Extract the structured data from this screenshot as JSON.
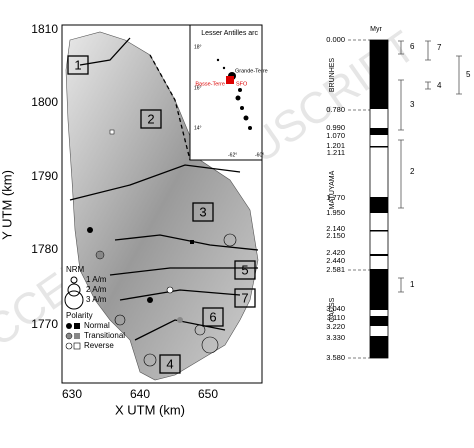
{
  "watermark": "ACCEPTED MANUSCRIPT",
  "map": {
    "x_axis_label": "X UTM (km)",
    "y_axis_label": "Y UTM (km)",
    "xticks": [
      "630",
      "640",
      "650"
    ],
    "yticks": [
      "1810",
      "1800",
      "1790",
      "1780",
      "1770"
    ],
    "zones": [
      "1",
      "2",
      "3",
      "4",
      "5",
      "6",
      "7"
    ],
    "inset": {
      "title": "Lesser Antilles arc",
      "labels": [
        "Grande-Terre",
        "Basse-Terre",
        "SFO"
      ],
      "lat_labels": [
        "18°",
        "16°",
        "14°"
      ],
      "lon_labels": [
        "-62°",
        "-60°"
      ]
    },
    "legend": {
      "nrm_title": "NRM",
      "nrm_items": [
        "1 A/m",
        "2 A/m",
        "3 A/m"
      ],
      "polarity_title": "Polarity",
      "polarity_items": [
        "Normal",
        "Transitional",
        "Reverse"
      ]
    }
  },
  "timescale": {
    "unit": "Myr",
    "ages": [
      "0.000",
      "0.780",
      "0.990",
      "1.070",
      "1.201",
      "1.211",
      "1.770",
      "1.950",
      "2.140",
      "2.150",
      "2.420",
      "2.440",
      "2.581",
      "3.040",
      "3.110",
      "3.220",
      "3.330",
      "3.580"
    ],
    "chrons": [
      "BRUNHES",
      "MATUYAMA",
      "GAUSS"
    ],
    "groups": [
      "6",
      "7",
      "4",
      "5",
      "3",
      "2",
      "1"
    ]
  }
}
